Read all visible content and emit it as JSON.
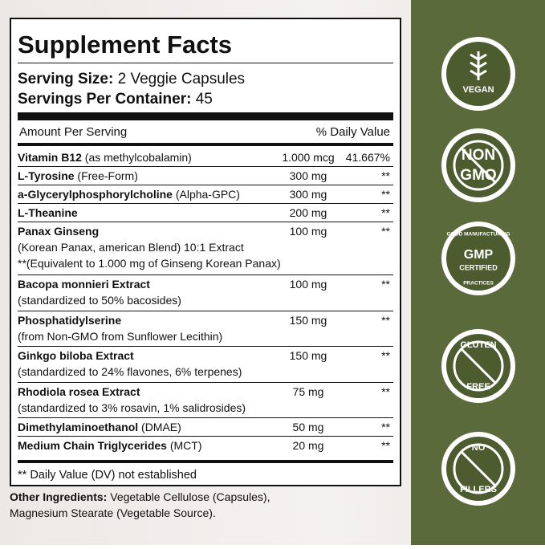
{
  "label": {
    "title": "Supplement Facts",
    "serving_size": {
      "label": "Serving Size:",
      "value": "2 Veggie Capsules"
    },
    "servings_per_container": {
      "label": "Servings Per Container:",
      "value": "45"
    },
    "header": {
      "amount": "Amount Per Serving",
      "dv": "% Daily Value"
    },
    "rows": [
      {
        "name": "Vitamin B12",
        "note": "(as methylcobalamin)",
        "amount": "1.000 mcg",
        "dv": "41.667%"
      },
      {
        "name": "L-Tyrosine",
        "note": "(Free-Form)",
        "amount": "300 mg",
        "dv": "**"
      },
      {
        "name": "a-Glycerylphosphorylcholine",
        "note": "(Alpha-GPC)",
        "amount": "300 mg",
        "dv": "**"
      },
      {
        "name": "L-Theanine",
        "amount": "200 mg",
        "dv": "**"
      },
      {
        "name": "Panax Ginseng",
        "sub": [
          "(Korean Panax, american Blend) 10:1 Extract",
          "**(Equivalent to 1.000 mg of Ginseng Korean Panax)"
        ],
        "amount": "100 mg",
        "dv": "**"
      },
      {
        "name": "Bacopa monnieri Extract",
        "sub": [
          "(standardized to 50% bacosides)"
        ],
        "amount": "100 mg",
        "dv": "**"
      },
      {
        "name": "Phosphatidylserine",
        "sub": [
          "(from Non-GMO from Sunflower Lecithin)"
        ],
        "amount": "150 mg",
        "dv": "**"
      },
      {
        "name": "Ginkgo biloba Extract",
        "sub": [
          "(standardized to 24% flavones, 6% terpenes)"
        ],
        "amount": "150 mg",
        "dv": "**"
      },
      {
        "name": "Rhodiola rosea Extract",
        "sub": [
          "(standardized to 3% rosavin, 1% salidrosides)"
        ],
        "amount": "75 mg",
        "dv": "**"
      },
      {
        "name": "Dimethylaminoethanol",
        "note": "(DMAE)",
        "amount": "50 mg",
        "dv": "**"
      },
      {
        "name": "Medium Chain Triglycerides",
        "note": "(MCT)",
        "amount": "20 mg",
        "dv": "**"
      }
    ],
    "footnote": "** Daily Value (DV) not established"
  },
  "other_ingredients": {
    "label": "Other Ingredients:",
    "lines": [
      "Vegetable Cellulose (Capsules),",
      "Magnesium Stearate (Vegetable Source)."
    ]
  },
  "badges": [
    {
      "lines": [
        "VEGAN"
      ]
    },
    {
      "lines": [
        "NON",
        "GMO"
      ]
    },
    {
      "lines": [
        "GOOD MANUFACTURING",
        "GMP",
        "CERTIFIED",
        "PRACTICES"
      ]
    },
    {
      "lines": [
        "GLUTEN",
        "FREE"
      ]
    },
    {
      "lines": [
        "NO",
        "FILLERS"
      ]
    }
  ]
}
